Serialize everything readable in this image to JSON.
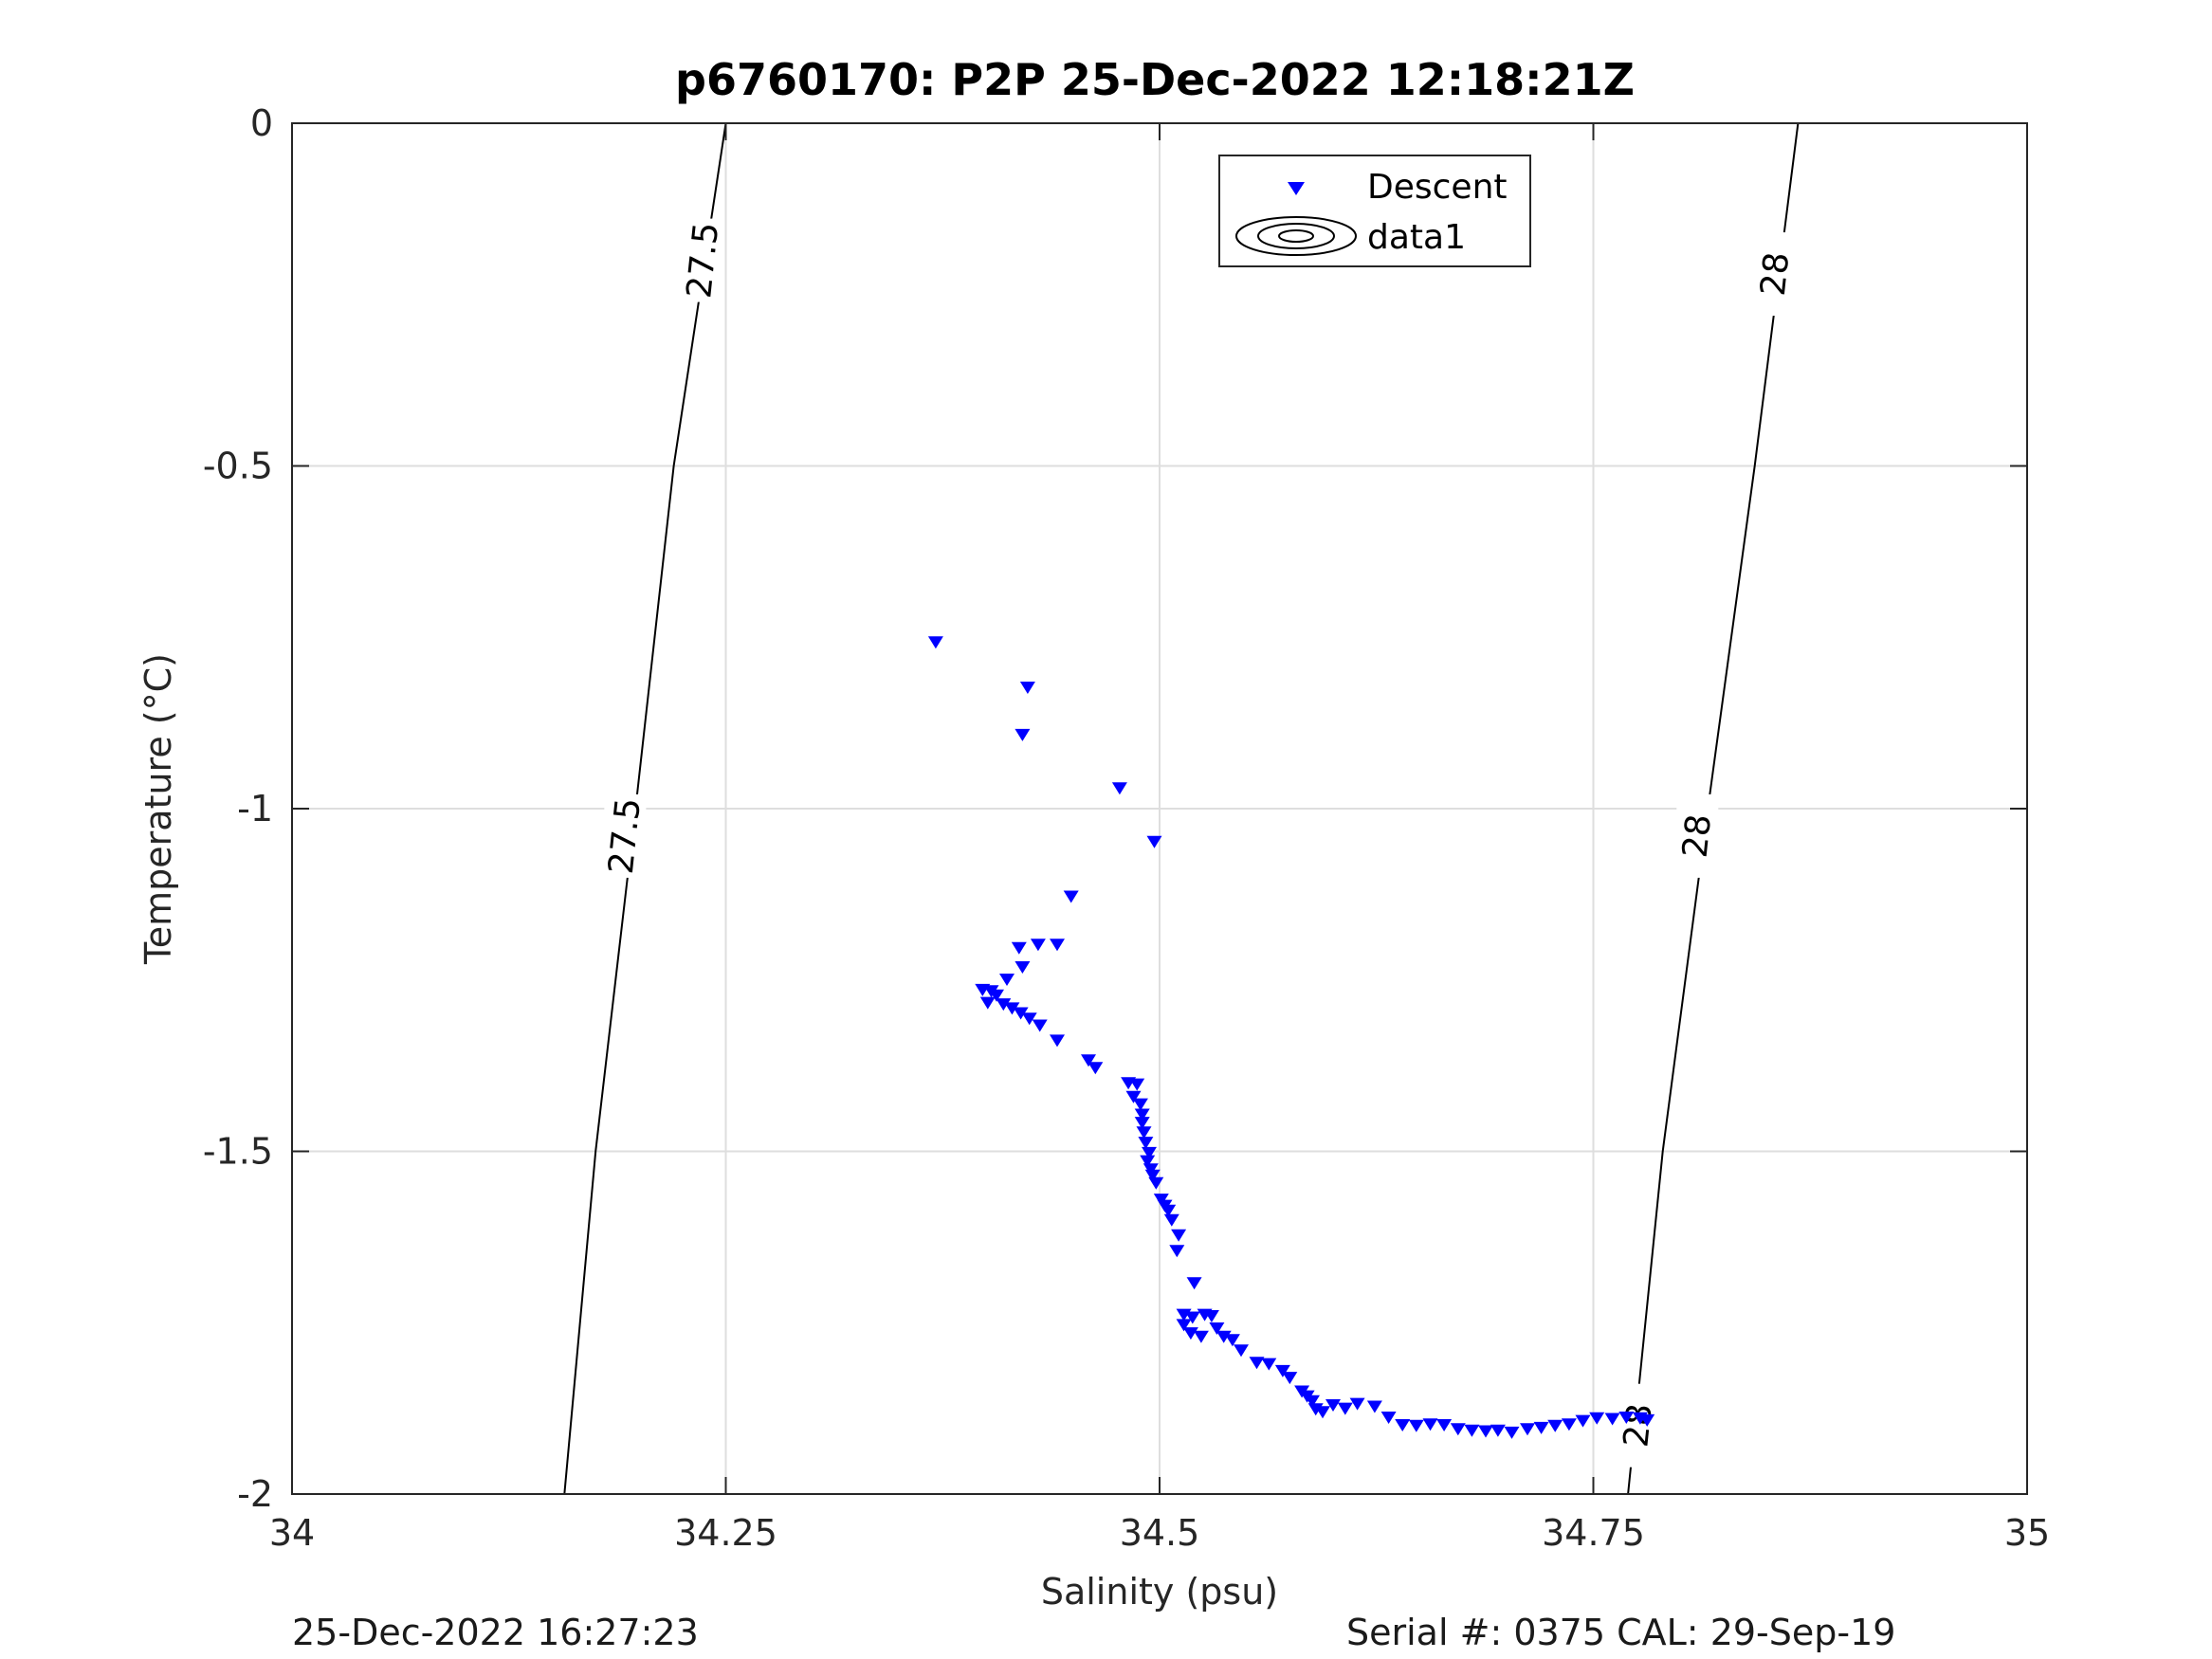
{
  "chart_data": {
    "type": "scatter",
    "title": "p6760170: P2P 25-Dec-2022 12:18:21Z",
    "xlabel": "Salinity (psu)",
    "ylabel": "Temperature (°C)",
    "xlim": [
      34,
      35
    ],
    "ylim": [
      -2,
      0
    ],
    "xticks": [
      "34",
      "34.25",
      "34.5",
      "34.75",
      "35"
    ],
    "yticks": [
      "0",
      "-0.5",
      "-1",
      "-1.5",
      "-2"
    ],
    "grid": true,
    "legend": {
      "placement": "top-center",
      "entries": [
        "Descent",
        "data1"
      ]
    },
    "series": [
      {
        "name": "Descent",
        "marker": "triangle-down",
        "color": "#0000ff",
        "points": [
          [
            34.371,
            -0.757
          ],
          [
            34.424,
            -0.823
          ],
          [
            34.421,
            -0.892
          ],
          [
            34.477,
            -0.97
          ],
          [
            34.497,
            -1.048
          ],
          [
            34.449,
            -1.128
          ],
          [
            34.43,
            -1.198
          ],
          [
            34.441,
            -1.198
          ],
          [
            34.419,
            -1.203
          ],
          [
            34.421,
            -1.231
          ],
          [
            34.412,
            -1.249
          ],
          [
            34.398,
            -1.264
          ],
          [
            34.403,
            -1.266
          ],
          [
            34.406,
            -1.272
          ],
          [
            34.401,
            -1.283
          ],
          [
            34.41,
            -1.285
          ],
          [
            34.415,
            -1.291
          ],
          [
            34.42,
            -1.298
          ],
          [
            34.425,
            -1.306
          ],
          [
            34.431,
            -1.316
          ],
          [
            34.441,
            -1.338
          ],
          [
            34.459,
            -1.367
          ],
          [
            34.463,
            -1.378
          ],
          [
            34.482,
            -1.4
          ],
          [
            34.487,
            -1.402
          ],
          [
            34.485,
            -1.42
          ],
          [
            34.489,
            -1.431
          ],
          [
            34.49,
            -1.446
          ],
          [
            34.49,
            -1.458
          ],
          [
            34.491,
            -1.472
          ],
          [
            34.492,
            -1.487
          ],
          [
            34.494,
            -1.502
          ],
          [
            34.493,
            -1.514
          ],
          [
            34.495,
            -1.526
          ],
          [
            34.496,
            -1.535
          ],
          [
            34.498,
            -1.546
          ],
          [
            34.501,
            -1.57
          ],
          [
            34.503,
            -1.579
          ],
          [
            34.505,
            -1.586
          ],
          [
            34.507,
            -1.6
          ],
          [
            34.511,
            -1.622
          ],
          [
            34.51,
            -1.645
          ],
          [
            34.52,
            -1.692
          ],
          [
            34.514,
            -1.738
          ],
          [
            34.519,
            -1.742
          ],
          [
            34.526,
            -1.738
          ],
          [
            34.53,
            -1.74
          ],
          [
            34.514,
            -1.753
          ],
          [
            34.518,
            -1.765
          ],
          [
            34.524,
            -1.77
          ],
          [
            34.533,
            -1.758
          ],
          [
            34.537,
            -1.77
          ],
          [
            34.542,
            -1.775
          ],
          [
            34.547,
            -1.79
          ],
          [
            34.556,
            -1.808
          ],
          [
            34.563,
            -1.81
          ],
          [
            34.571,
            -1.82
          ],
          [
            34.575,
            -1.83
          ],
          [
            34.582,
            -1.85
          ],
          [
            34.585,
            -1.857
          ],
          [
            34.588,
            -1.864
          ],
          [
            34.59,
            -1.876
          ],
          [
            34.594,
            -1.88
          ],
          [
            34.6,
            -1.87
          ],
          [
            34.607,
            -1.875
          ],
          [
            34.614,
            -1.868
          ],
          [
            34.624,
            -1.872
          ],
          [
            34.632,
            -1.888
          ],
          [
            34.64,
            -1.899
          ],
          [
            34.648,
            -1.9
          ],
          [
            34.656,
            -1.898
          ],
          [
            34.664,
            -1.899
          ],
          [
            34.672,
            -1.905
          ],
          [
            34.68,
            -1.907
          ],
          [
            34.688,
            -1.908
          ],
          [
            34.695,
            -1.907
          ],
          [
            34.703,
            -1.91
          ],
          [
            34.712,
            -1.905
          ],
          [
            34.72,
            -1.903
          ],
          [
            34.728,
            -1.9
          ],
          [
            34.736,
            -1.898
          ],
          [
            34.744,
            -1.893
          ],
          [
            34.752,
            -1.889
          ],
          [
            34.761,
            -1.89
          ],
          [
            34.769,
            -1.888
          ],
          [
            34.777,
            -1.889
          ],
          [
            34.781,
            -1.892
          ]
        ]
      }
    ],
    "contours": [
      {
        "label": "27.5",
        "points": [
          [
            34.25,
            0
          ],
          [
            34.22,
            -0.5
          ],
          [
            34.198,
            -1
          ],
          [
            34.175,
            -1.5
          ],
          [
            34.157,
            -2
          ]
        ],
        "label_positions": [
          [
            34.237,
            -0.2
          ],
          [
            34.192,
            -1.04
          ]
        ]
      },
      {
        "label": "28",
        "points": [
          [
            34.868,
            0
          ],
          [
            34.843,
            -0.5
          ],
          [
            34.816,
            -1
          ],
          [
            34.79,
            -1.5
          ],
          [
            34.77,
            -2
          ]
        ],
        "label_positions": [
          [
            34.855,
            -0.22
          ],
          [
            34.81,
            -1.04
          ],
          [
            34.776,
            -1.9
          ]
        ]
      }
    ]
  },
  "footer": {
    "timestamp": "25-Dec-2022 16:27:23",
    "serial": "Serial #: 0375  CAL: 29-Sep-19"
  },
  "colors": {
    "marker": "#0000ff",
    "grid": "#dedede",
    "axis": "#262626",
    "contour": "#000000"
  }
}
